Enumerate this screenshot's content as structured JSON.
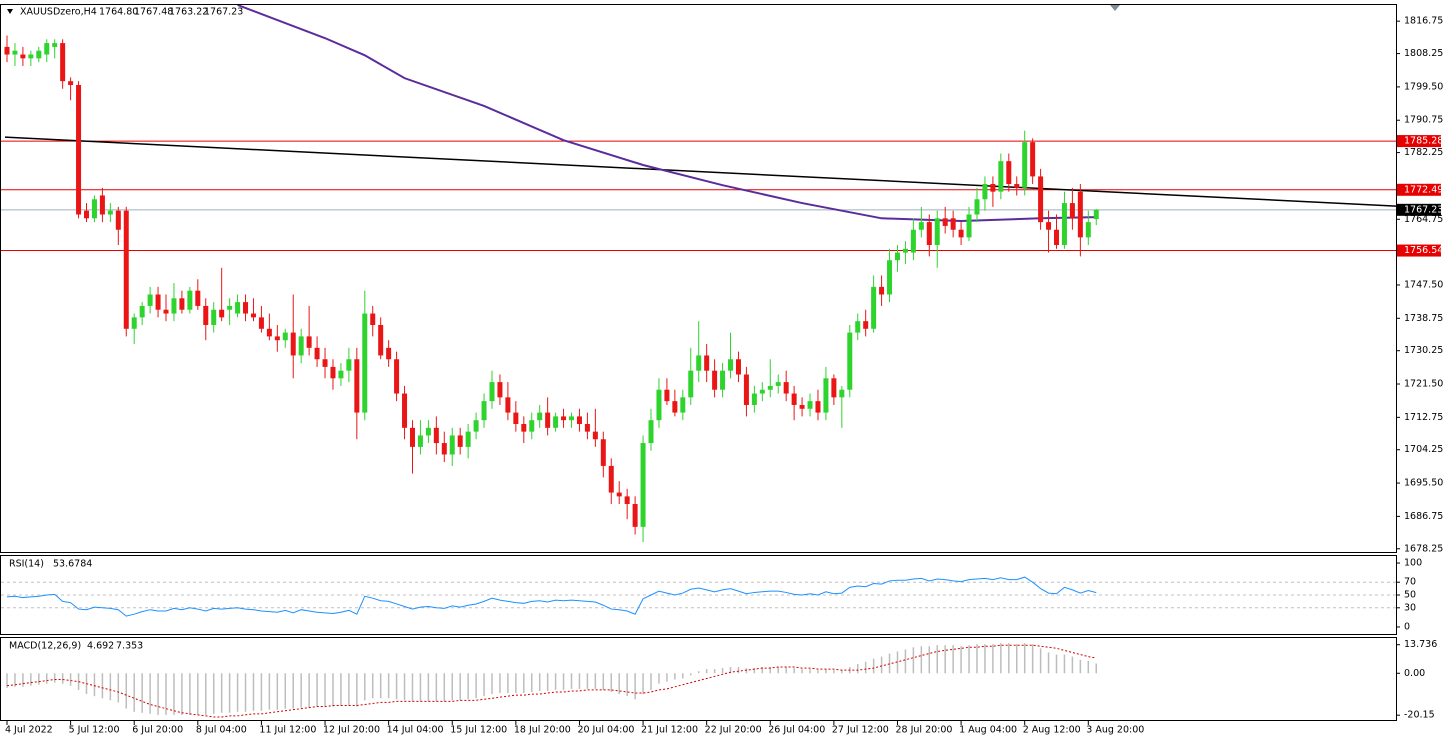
{
  "chart_data": {
    "type": "candlestick",
    "symbol": "XAUUSDzero,H4",
    "ohlc_label": [
      "1764.80",
      "1767.48",
      "1763.22",
      "1767.23"
    ],
    "up_color": "#2ed32e",
    "down_color": "#ea1515",
    "candles": [
      [
        1810,
        1813,
        1806,
        1808
      ],
      [
        1808,
        1811,
        1805,
        1809
      ],
      [
        1808,
        1810,
        1805,
        1807
      ],
      [
        1807,
        1809,
        1805,
        1808
      ],
      [
        1807,
        1810,
        1806,
        1809
      ],
      [
        1808,
        1812,
        1806,
        1811
      ],
      [
        1810,
        1812,
        1807,
        1811
      ],
      [
        1811,
        1812,
        1799,
        1801
      ],
      [
        1801,
        1802,
        1796,
        1800
      ],
      [
        1800,
        1801,
        1765,
        1766
      ],
      [
        1767,
        1769,
        1764,
        1765
      ],
      [
        1765,
        1771,
        1764,
        1770
      ],
      [
        1771,
        1773,
        1764,
        1766
      ],
      [
        1766,
        1769,
        1764,
        1767
      ],
      [
        1767,
        1768,
        1758,
        1762
      ],
      [
        1767,
        1768,
        1734,
        1736
      ],
      [
        1736,
        1740,
        1732,
        1739
      ],
      [
        1739,
        1743,
        1737,
        1742
      ],
      [
        1742,
        1747,
        1740,
        1745
      ],
      [
        1745,
        1747,
        1739,
        1741
      ],
      [
        1741,
        1745,
        1738,
        1740
      ],
      [
        1740,
        1748,
        1738,
        1744
      ],
      [
        1744,
        1746,
        1740,
        1741
      ],
      [
        1741,
        1747,
        1740,
        1746
      ],
      [
        1746,
        1749,
        1741,
        1742
      ],
      [
        1742,
        1744,
        1733,
        1737
      ],
      [
        1737,
        1743,
        1735,
        1741
      ],
      [
        1741,
        1752,
        1738,
        1739
      ],
      [
        1741,
        1744,
        1737,
        1742
      ],
      [
        1740,
        1745,
        1739,
        1743
      ],
      [
        1743,
        1745,
        1738,
        1740
      ],
      [
        1740,
        1744,
        1738,
        1739
      ],
      [
        1739,
        1742,
        1735,
        1736
      ],
      [
        1736,
        1740,
        1733,
        1734
      ],
      [
        1734,
        1737,
        1730,
        1733
      ],
      [
        1733,
        1736,
        1731,
        1735
      ],
      [
        1735,
        1745,
        1723,
        1729
      ],
      [
        1729,
        1736,
        1727,
        1734
      ],
      [
        1734,
        1742,
        1729,
        1731
      ],
      [
        1731,
        1734,
        1726,
        1728
      ],
      [
        1728,
        1731,
        1723,
        1726
      ],
      [
        1726,
        1728,
        1720,
        1723
      ],
      [
        1723,
        1727,
        1721,
        1725
      ],
      [
        1725,
        1731,
        1722,
        1728
      ],
      [
        1728,
        1731,
        1707,
        1714
      ],
      [
        1714,
        1746,
        1712,
        1740
      ],
      [
        1740,
        1742,
        1734,
        1737
      ],
      [
        1737,
        1739,
        1728,
        1729
      ],
      [
        1731,
        1733,
        1726,
        1728
      ],
      [
        1728,
        1730,
        1717,
        1719
      ],
      [
        1719,
        1721,
        1707,
        1710
      ],
      [
        1710,
        1712,
        1698,
        1705
      ],
      [
        1705,
        1712,
        1703,
        1708
      ],
      [
        1708,
        1712,
        1706,
        1710
      ],
      [
        1710,
        1713,
        1703,
        1706
      ],
      [
        1706,
        1709,
        1701,
        1703
      ],
      [
        1703,
        1710,
        1700,
        1708
      ],
      [
        1708,
        1710,
        1703,
        1705
      ],
      [
        1705,
        1711,
        1702,
        1709
      ],
      [
        1709,
        1714,
        1707,
        1712
      ],
      [
        1712,
        1719,
        1710,
        1717
      ],
      [
        1717,
        1725,
        1715,
        1722
      ],
      [
        1722,
        1724,
        1716,
        1718
      ],
      [
        1718,
        1722,
        1712,
        1714
      ],
      [
        1714,
        1717,
        1709,
        1711
      ],
      [
        1711,
        1713,
        1706,
        1709
      ],
      [
        1709,
        1714,
        1707,
        1712
      ],
      [
        1712,
        1716,
        1710,
        1714
      ],
      [
        1714,
        1718,
        1708,
        1710
      ],
      [
        1710,
        1714,
        1709,
        1713
      ],
      [
        1713,
        1715,
        1710,
        1712
      ],
      [
        1712,
        1714,
        1710,
        1713
      ],
      [
        1713,
        1715,
        1709,
        1711
      ],
      [
        1711,
        1714,
        1707,
        1709
      ],
      [
        1709,
        1715,
        1705,
        1707
      ],
      [
        1707,
        1709,
        1697,
        1700
      ],
      [
        1700,
        1702,
        1690,
        1693
      ],
      [
        1693,
        1696,
        1690,
        1692
      ],
      [
        1692,
        1694,
        1686,
        1690
      ],
      [
        1690,
        1692,
        1682,
        1684
      ],
      [
        1684,
        1708,
        1680,
        1706
      ],
      [
        1706,
        1715,
        1704,
        1712
      ],
      [
        1712,
        1723,
        1710,
        1720
      ],
      [
        1720,
        1723,
        1716,
        1717
      ],
      [
        1717,
        1720,
        1713,
        1714
      ],
      [
        1714,
        1720,
        1712,
        1718
      ],
      [
        1718,
        1731,
        1716,
        1725
      ],
      [
        1725,
        1738,
        1722,
        1729
      ],
      [
        1729,
        1732,
        1722,
        1725
      ],
      [
        1725,
        1728,
        1718,
        1720
      ],
      [
        1720,
        1727,
        1718,
        1725
      ],
      [
        1725,
        1735,
        1723,
        1728
      ],
      [
        1728,
        1730,
        1722,
        1724
      ],
      [
        1724,
        1726,
        1713,
        1716
      ],
      [
        1716,
        1721,
        1714,
        1719
      ],
      [
        1719,
        1722,
        1717,
        1720
      ],
      [
        1720,
        1728,
        1718,
        1721
      ],
      [
        1721,
        1724,
        1719,
        1722
      ],
      [
        1722,
        1725,
        1717,
        1719
      ],
      [
        1719,
        1721,
        1712,
        1716
      ],
      [
        1716,
        1718,
        1713,
        1715
      ],
      [
        1715,
        1719,
        1713,
        1717
      ],
      [
        1717,
        1720,
        1712,
        1714
      ],
      [
        1714,
        1726,
        1712,
        1723
      ],
      [
        1723,
        1724,
        1716,
        1718
      ],
      [
        1718,
        1721,
        1710,
        1720
      ],
      [
        1720,
        1737,
        1718,
        1735
      ],
      [
        1735,
        1740,
        1733,
        1738
      ],
      [
        1738,
        1741,
        1734,
        1736
      ],
      [
        1736,
        1750,
        1735,
        1747
      ],
      [
        1747,
        1750,
        1742,
        1745
      ],
      [
        1745,
        1757,
        1743,
        1754
      ],
      [
        1754,
        1758,
        1751,
        1756
      ],
      [
        1756,
        1759,
        1753,
        1757
      ],
      [
        1756,
        1765,
        1754,
        1762
      ],
      [
        1762,
        1768,
        1760,
        1764
      ],
      [
        1764,
        1766,
        1755,
        1758
      ],
      [
        1758,
        1767,
        1752,
        1765
      ],
      [
        1765,
        1768,
        1761,
        1763
      ],
      [
        1765,
        1767,
        1760,
        1762
      ],
      [
        1762,
        1764,
        1758,
        1760
      ],
      [
        1760,
        1768,
        1759,
        1766
      ],
      [
        1766,
        1773,
        1764,
        1770
      ],
      [
        1770,
        1776,
        1767,
        1774
      ],
      [
        1774,
        1776,
        1768,
        1772
      ],
      [
        1772,
        1782,
        1770,
        1780
      ],
      [
        1780,
        1782,
        1772,
        1774
      ],
      [
        1774,
        1776,
        1771,
        1773
      ],
      [
        1773,
        1788,
        1771,
        1785
      ],
      [
        1785,
        1786,
        1774,
        1776
      ],
      [
        1776,
        1778,
        1762,
        1764
      ],
      [
        1764,
        1767,
        1756,
        1762
      ],
      [
        1762,
        1766,
        1757,
        1758
      ],
      [
        1758,
        1772,
        1757,
        1769
      ],
      [
        1769,
        1773,
        1762,
        1765
      ],
      [
        1772,
        1774,
        1755,
        1760
      ],
      [
        1760,
        1767,
        1758,
        1764
      ],
      [
        1764.8,
        1767.48,
        1763.22,
        1767.23
      ]
    ],
    "xlim": [
      -0.88,
      174.7
    ],
    "xticks": [
      {
        "value": 0,
        "label": "4 Jul 2022"
      },
      {
        "value": 8,
        "label": "5 Jul 12:00"
      },
      {
        "value": 16,
        "label": "6 Jul 20:00"
      },
      {
        "value": 24,
        "label": "8 Jul 04:00"
      },
      {
        "value": 32,
        "label": "11 Jul 12:00"
      },
      {
        "value": 40,
        "label": "12 Jul 20:00"
      },
      {
        "value": 48,
        "label": "14 Jul 04:00"
      },
      {
        "value": 56,
        "label": "15 Jul 12:00"
      },
      {
        "value": 64,
        "label": "18 Jul 20:00"
      },
      {
        "value": 72,
        "label": "20 Jul 04:00"
      },
      {
        "value": 80,
        "label": "21 Jul 12:00"
      },
      {
        "value": 88,
        "label": "22 Jul 20:00"
      },
      {
        "value": 96,
        "label": "26 Jul 04:00"
      },
      {
        "value": 104,
        "label": "27 Jul 12:00"
      },
      {
        "value": 112,
        "label": "28 Jul 20:00"
      },
      {
        "value": 120,
        "label": "1 Aug 04:00"
      },
      {
        "value": 128,
        "label": "2 Aug 12:00"
      },
      {
        "value": 136,
        "label": "3 Aug 20:00"
      }
    ],
    "ylim": [
      1677.4,
      1821
    ],
    "yticks": [
      1816.75,
      1808.25,
      {
        "value": 1799.5,
        "label": "1799.50"
      },
      1790.75,
      1782.25,
      1764.75,
      {
        "value": 1747.5,
        "label": "1747.50"
      },
      1738.75,
      1730.25,
      {
        "value": 1721.5,
        "label": "1721.50"
      },
      1712.75,
      1704.25,
      {
        "value": 1695.5,
        "label": "1695.50"
      },
      1686.75,
      1678.25
    ],
    "levels": [
      {
        "value": 1785.28,
        "color": "#e60000"
      },
      {
        "value": 1772.49,
        "color": "#e60000"
      },
      {
        "value": 1756.54,
        "color": "#e60000"
      }
    ],
    "price_line_color": "#9fb0bb",
    "trendline": {
      "x": [
        -0.25,
        174.7
      ],
      "values": [
        1786.3,
        1768.2
      ],
      "color": "#000000"
    },
    "ma": {
      "x": [
        29,
        40,
        45,
        50,
        60,
        70,
        80,
        90,
        100,
        110,
        120,
        130,
        137
      ],
      "values": [
        1821,
        1812.3,
        1807.8,
        1801.8,
        1794.5,
        1785.5,
        1779,
        1773.7,
        1769,
        1765,
        1764.3,
        1765,
        1765.3
      ],
      "color": "#5b2c9c"
    },
    "rsi": {
      "title": "RSI(14)",
      "color": "#1e90ff",
      "ylim": [
        -11,
        111
      ],
      "yticks": [
        100,
        70,
        50,
        30,
        0
      ],
      "levels": [
        70,
        50,
        30
      ],
      "values": [
        47,
        48,
        46,
        47,
        48,
        50,
        51,
        40,
        38,
        28,
        27,
        31,
        30,
        29,
        27,
        17,
        20,
        24,
        27,
        25,
        25,
        29,
        27,
        30,
        28,
        25,
        29,
        28,
        29,
        30,
        28,
        27,
        25,
        24,
        23,
        26,
        22,
        27,
        25,
        23,
        22,
        21,
        23,
        26,
        20,
        48,
        45,
        41,
        40,
        36,
        32,
        28,
        31,
        32,
        30,
        29,
        33,
        31,
        34,
        36,
        40,
        45,
        42,
        40,
        38,
        37,
        40,
        41,
        39,
        42,
        41,
        42,
        41,
        40,
        39,
        34,
        28,
        27,
        25,
        20,
        44,
        50,
        56,
        53,
        50,
        53,
        59,
        61,
        58,
        55,
        58,
        60,
        56,
        52,
        54,
        55,
        56,
        56,
        54,
        51,
        50,
        52,
        50,
        55,
        52,
        53,
        62,
        64,
        63,
        68,
        67,
        72,
        73,
        73,
        75,
        76,
        72,
        75,
        74,
        72,
        71,
        74,
        75,
        76,
        74,
        77,
        74,
        74,
        78,
        70,
        60,
        53,
        52,
        62,
        58,
        53,
        57,
        53.6784
      ]
    },
    "macd": {
      "title": "MACD(12,26,9)",
      "hist_color": "#bdbdbd",
      "signal_color": "#d40000",
      "ylim": [
        -21.5,
        16
      ],
      "yticks": [
        13.736,
        {
          "value": 0,
          "label": "0.00"
        },
        -20.15
      ],
      "values": [
        -7,
        -6.5,
        -6.5,
        -6,
        -5.5,
        -5,
        -4.5,
        -5,
        -6,
        -8,
        -10,
        -11,
        -12,
        -13,
        -14,
        -17,
        -18.5,
        -19,
        -19.5,
        -20,
        -20,
        -20,
        -20,
        -20,
        -20,
        -20,
        -19.5,
        -19,
        -19,
        -18.5,
        -18.5,
        -18,
        -18,
        -17.5,
        -17.5,
        -17,
        -17,
        -16.5,
        -16.5,
        -16,
        -16,
        -16,
        -15.5,
        -15.5,
        -16,
        -13,
        -12,
        -12,
        -12,
        -12.5,
        -13,
        -13.5,
        -13.5,
        -13.5,
        -13.5,
        -13.5,
        -13,
        -13,
        -12.5,
        -12,
        -11,
        -10,
        -9.5,
        -9.5,
        -9.5,
        -9.5,
        -9,
        -8.5,
        -8.5,
        -8,
        -8,
        -7.5,
        -7.5,
        -7.5,
        -7.5,
        -8,
        -9,
        -10,
        -11,
        -12.5,
        -10,
        -8,
        -5,
        -4,
        -3,
        -2.5,
        -1,
        1,
        2,
        2,
        2.5,
        3,
        3,
        2.5,
        2.5,
        3,
        3,
        3,
        3,
        2.5,
        2,
        2,
        1.5,
        2,
        1.5,
        1.5,
        3,
        4.5,
        5.5,
        7,
        8,
        9.5,
        10.5,
        11.5,
        12.5,
        13,
        13,
        13.5,
        13.5,
        13.5,
        13,
        13.5,
        14,
        14,
        14,
        14.5,
        14.5,
        14,
        14.5,
        14,
        12,
        10,
        9,
        9,
        8,
        6.5,
        6,
        4.692
      ],
      "signal": [
        -6,
        -5.5,
        -5,
        -4.5,
        -4,
        -3.5,
        -3,
        -3,
        -3.5,
        -4,
        -5,
        -6,
        -7,
        -8,
        -9,
        -10.5,
        -12,
        -13.5,
        -15,
        -16,
        -17,
        -18,
        -19,
        -19.5,
        -20,
        -20.5,
        -21,
        -21,
        -20.5,
        -20.5,
        -20,
        -19.5,
        -19.5,
        -19,
        -18.5,
        -18,
        -17.5,
        -17,
        -16.5,
        -16,
        -16,
        -15.5,
        -15.5,
        -15.5,
        -15.5,
        -15,
        -14.5,
        -14,
        -14,
        -13.5,
        -13.5,
        -13.5,
        -13.5,
        -13.5,
        -13.5,
        -13.5,
        -13.5,
        -13,
        -13,
        -13,
        -12.5,
        -12,
        -11.5,
        -11,
        -10.5,
        -10.5,
        -10,
        -10,
        -9.5,
        -9,
        -9,
        -8.5,
        -8.5,
        -8,
        -8,
        -8,
        -8,
        -8.5,
        -9,
        -9.5,
        -9.5,
        -9,
        -8,
        -7.5,
        -6.5,
        -5.5,
        -4.5,
        -3.5,
        -2.5,
        -1.5,
        -0.5,
        0.5,
        1,
        1.5,
        2,
        2.5,
        2.5,
        3,
        3,
        3,
        2.5,
        2.5,
        2,
        2,
        2,
        1.5,
        1.5,
        1.5,
        2,
        2.5,
        3.5,
        4.5,
        5.5,
        6.5,
        7.5,
        8.5,
        9.5,
        10.5,
        11,
        11.5,
        12,
        12.5,
        12.5,
        13,
        13,
        13.5,
        13.5,
        13.5,
        13.5,
        13.5,
        13,
        12.5,
        12,
        11,
        10,
        9,
        8,
        7.353
      ]
    }
  }
}
